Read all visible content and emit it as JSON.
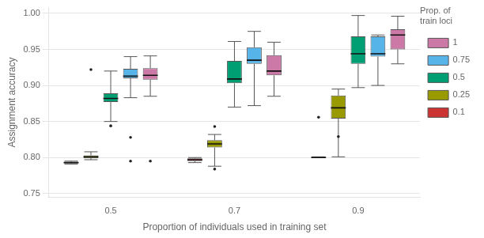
{
  "chart_data": {
    "type": "box",
    "xlabel": "Proportion of individuals used in training set",
    "ylabel": "Assignment accuracy",
    "categories": [
      "0.5",
      "0.7",
      "0.9"
    ],
    "ylim": [
      0.745,
      1.008
    ],
    "yticks": [
      0.75,
      {
        "value": 0.8,
        "label": "0.80"
      },
      0.85,
      {
        "value": 0.9,
        "label": "0.90"
      },
      0.95,
      {
        "value": 1.0,
        "label": "1.00"
      }
    ],
    "grid": true,
    "legend": "right",
    "legend_title": "Prop. of\ntrain loci",
    "series": [
      {
        "name": "0.1",
        "color": "#cc3333",
        "values": [
          {
            "whislo": 0.791,
            "q1": 0.792,
            "med": 0.793,
            "q3": 0.794,
            "whishi": 0.795,
            "fliers": []
          },
          {
            "whislo": 0.793,
            "q1": 0.795,
            "med": 0.797,
            "q3": 0.799,
            "whishi": 0.8,
            "fliers": []
          },
          {
            "whislo": 0.8,
            "q1": 0.8,
            "med": 0.8,
            "q3": 0.801,
            "whishi": 0.801,
            "fliers": [
              0.856
            ]
          }
        ]
      },
      {
        "name": "0.25",
        "color": "#999900",
        "values": [
          {
            "whislo": 0.797,
            "q1": 0.799,
            "med": 0.801,
            "q3": 0.803,
            "whishi": 0.808,
            "fliers": [
              0.922
            ]
          },
          {
            "whislo": 0.788,
            "q1": 0.814,
            "med": 0.819,
            "q3": 0.824,
            "whishi": 0.832,
            "fliers": [
              0.843,
              0.784
            ]
          },
          {
            "whislo": 0.801,
            "q1": 0.854,
            "med": 0.869,
            "q3": 0.886,
            "whishi": 0.895,
            "fliers": [
              0.829
            ]
          }
        ]
      },
      {
        "name": "0.5",
        "color": "#009e73",
        "values": [
          {
            "whislo": 0.85,
            "q1": 0.877,
            "med": 0.882,
            "q3": 0.889,
            "whishi": 0.92,
            "fliers": [
              0.844
            ]
          },
          {
            "whislo": 0.87,
            "q1": 0.903,
            "med": 0.909,
            "q3": 0.934,
            "whishi": 0.961,
            "fliers": []
          },
          {
            "whislo": 0.897,
            "q1": 0.93,
            "med": 0.944,
            "q3": 0.968,
            "whishi": 0.997,
            "fliers": []
          }
        ]
      },
      {
        "name": "0.75",
        "color": "#56b4e9",
        "values": [
          {
            "whislo": 0.883,
            "q1": 0.91,
            "med": 0.913,
            "q3": 0.923,
            "whishi": 0.94,
            "fliers": [
              0.828,
              0.795
            ]
          },
          {
            "whislo": 0.872,
            "q1": 0.93,
            "med": 0.935,
            "q3": 0.953,
            "whishi": 0.975,
            "fliers": []
          },
          {
            "whislo": 0.9,
            "q1": 0.94,
            "med": 0.944,
            "q3": 0.968,
            "whishi": 0.97,
            "fliers": []
          }
        ]
      },
      {
        "name": "1",
        "color": "#cc79a7",
        "values": [
          {
            "whislo": 0.885,
            "q1": 0.908,
            "med": 0.914,
            "q3": 0.924,
            "whishi": 0.941,
            "fliers": [
              0.795
            ]
          },
          {
            "whislo": 0.885,
            "q1": 0.914,
            "med": 0.92,
            "q3": 0.942,
            "whishi": 0.96,
            "fliers": []
          },
          {
            "whislo": 0.93,
            "q1": 0.95,
            "med": 0.97,
            "q3": 0.978,
            "whishi": 0.996,
            "fliers": []
          }
        ]
      }
    ]
  }
}
